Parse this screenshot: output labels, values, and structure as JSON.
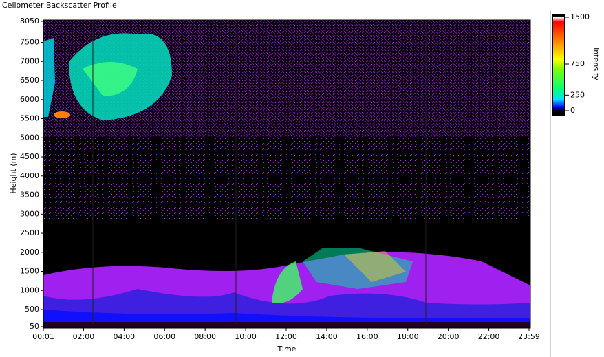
{
  "chart_data": {
    "type": "heatmap",
    "title": "Ceilometer Backscatter Profile",
    "x_label": "Time",
    "y_label": "Height (m)",
    "xlim": [
      1,
      1439
    ],
    "xticks": [
      {
        "value": 1,
        "label": "00:01"
      },
      {
        "value": 120,
        "label": "02:00"
      },
      {
        "value": 240,
        "label": "04:00"
      },
      {
        "value": 360,
        "label": "06:00"
      },
      {
        "value": 480,
        "label": "08:00"
      },
      {
        "value": 600,
        "label": "10:00"
      },
      {
        "value": 720,
        "label": "12:00"
      },
      {
        "value": 840,
        "label": "14:00"
      },
      {
        "value": 960,
        "label": "16:00"
      },
      {
        "value": 1080,
        "label": "18:00"
      },
      {
        "value": 1200,
        "label": "20:00"
      },
      {
        "value": 1320,
        "label": "22:00"
      },
      {
        "value": 1439,
        "label": "23:59"
      }
    ],
    "ylim": [
      50,
      8050
    ],
    "yticks": [
      50,
      500,
      1000,
      1500,
      2000,
      2500,
      3000,
      3500,
      4000,
      4500,
      5000,
      5500,
      6000,
      6500,
      7000,
      7500,
      8050
    ],
    "colorbar": {
      "label": "Intensity",
      "clim": [
        0,
        1500
      ],
      "ticks": [
        0,
        250,
        750,
        1500
      ]
    }
  }
}
